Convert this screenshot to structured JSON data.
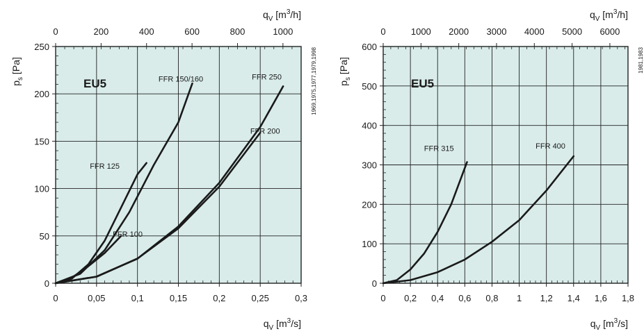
{
  "chart_data": [
    {
      "type": "line",
      "filter_class": "EU5",
      "side_note": "1969,1975,1977,1979,1998",
      "y_axis_label": {
        "base": "p",
        "sub": "s",
        "unit": " [Pa]"
      },
      "x_axis_label": {
        "base": "q",
        "sub": "V",
        "unit_pre": " [m",
        "sup": "3",
        "unit_post": "/s]"
      },
      "x2_axis_label": {
        "base": "q",
        "sub": "V",
        "unit_pre": " [m",
        "sup": "3",
        "unit_post": "/h]"
      },
      "xlim": [
        0,
        0.3
      ],
      "ylim": [
        0,
        250
      ],
      "x2lim": [
        0,
        1080
      ],
      "x_ticks": [
        0,
        0.05,
        0.1,
        0.15,
        0.2,
        0.25,
        0.3
      ],
      "x_tick_labels": [
        "0",
        "0,05",
        "0,1",
        "0,15",
        "0,2",
        "0,25",
        "0,3"
      ],
      "y_ticks": [
        0,
        50,
        100,
        150,
        200,
        250
      ],
      "y_tick_labels": [
        "0",
        "50",
        "100",
        "150",
        "200",
        "250"
      ],
      "x2_ticks": [
        0,
        200,
        400,
        600,
        800,
        1000
      ],
      "x2_tick_labels": [
        "0",
        "200",
        "400",
        "600",
        "800",
        "1000"
      ],
      "grid": true,
      "series": [
        {
          "name": "FFR 125",
          "x": [
            0,
            0.02,
            0.04,
            0.06,
            0.08,
            0.1,
            0.111
          ],
          "y": [
            0,
            5,
            20,
            45,
            80,
            115,
            127
          ],
          "label_at": [
            0.06,
            121
          ]
        },
        {
          "name": "FFR 150/160",
          "x": [
            0,
            0.03,
            0.06,
            0.09,
            0.12,
            0.15,
            0.167
          ],
          "y": [
            0,
            10,
            35,
            75,
            125,
            170,
            211
          ],
          "label_at": [
            0.153,
            213
          ]
        },
        {
          "name": "FFR 100",
          "x": [
            0,
            0.02,
            0.04,
            0.06,
            0.08
          ],
          "y": [
            0,
            6,
            18,
            32,
            50
          ],
          "label_at": [
            0.088,
            49
          ]
        },
        {
          "name": "FFR 200",
          "x": [
            0,
            0.05,
            0.1,
            0.15,
            0.2,
            0.25
          ],
          "y": [
            0,
            7,
            26,
            58,
            102,
            159
          ],
          "label_at": [
            0.256,
            158
          ]
        },
        {
          "name": "FFR 250",
          "x": [
            0,
            0.05,
            0.1,
            0.15,
            0.2,
            0.25,
            0.278
          ],
          "y": [
            0,
            7,
            26,
            60,
            106,
            165,
            208
          ],
          "label_at": [
            0.258,
            215
          ]
        }
      ]
    },
    {
      "type": "line",
      "filter_class": "EU5",
      "side_note": "1981,1983",
      "y_axis_label": {
        "base": "p",
        "sub": "s",
        "unit": " [Pa]"
      },
      "x_axis_label": {
        "base": "q",
        "sub": "V",
        "unit_pre": " [m",
        "sup": "3",
        "unit_post": "/s]"
      },
      "x2_axis_label": {
        "base": "q",
        "sub": "V",
        "unit_pre": " [m",
        "sup": "3",
        "unit_post": "/h]"
      },
      "xlim": [
        0,
        1.8
      ],
      "ylim": [
        0,
        600
      ],
      "x2lim": [
        0,
        6480
      ],
      "x_ticks": [
        0,
        0.2,
        0.4,
        0.6,
        0.8,
        1,
        1.2,
        1.4,
        1.6,
        1.8
      ],
      "x_tick_labels": [
        "0",
        "0,2",
        "0,4",
        "0,6",
        "0,8",
        "1",
        "1,2",
        "1,4",
        "1,6",
        "1,8"
      ],
      "y_ticks": [
        0,
        100,
        200,
        300,
        400,
        500,
        600
      ],
      "y_tick_labels": [
        "0",
        "100",
        "200",
        "300",
        "400",
        "500",
        "600"
      ],
      "x2_ticks": [
        0,
        1000,
        2000,
        3000,
        4000,
        5000,
        6000
      ],
      "x2_tick_labels": [
        "0",
        "1000",
        "2000",
        "3000",
        "4000",
        "5000",
        "6000"
      ],
      "grid": true,
      "series": [
        {
          "name": "FFR 315",
          "x": [
            0,
            0.1,
            0.2,
            0.3,
            0.4,
            0.5,
            0.616
          ],
          "y": [
            0,
            8,
            35,
            75,
            130,
            200,
            307
          ],
          "label_at": [
            0.41,
            335
          ]
        },
        {
          "name": "FFR 400",
          "x": [
            0,
            0.2,
            0.4,
            0.6,
            0.8,
            1,
            1.2,
            1.4
          ],
          "y": [
            0,
            8,
            28,
            60,
            105,
            160,
            235,
            322
          ],
          "label_at": [
            1.23,
            341
          ]
        }
      ]
    }
  ]
}
